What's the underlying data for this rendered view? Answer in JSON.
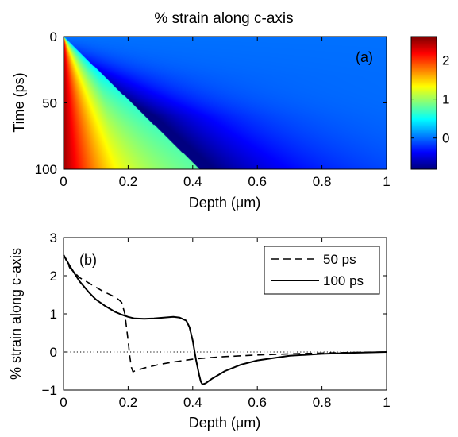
{
  "chart_data": [
    {
      "type": "heatmap",
      "panel_label": "(a)",
      "title": "% strain along c-axis",
      "xlabel_prefix": "Depth (",
      "xlabel_unit": "μm",
      "xlabel_suffix": ")",
      "ylabel": "Time (ps)",
      "xlim": [
        0,
        1
      ],
      "ylim": [
        0,
        100
      ],
      "y_reversed": true,
      "x_ticks": [
        "0",
        "0.2",
        "0.4",
        "0.6",
        "0.8",
        "1"
      ],
      "y_ticks": [
        "0",
        "50",
        "100"
      ],
      "x_tick_values": [
        0,
        0.2,
        0.4,
        0.6,
        0.8,
        1
      ],
      "y_tick_values": [
        0,
        50,
        100
      ],
      "colorbar": {
        "range": [
          -0.8,
          2.6
        ],
        "ticks": [
          "0",
          "1",
          "2"
        ],
        "tick_values": [
          0,
          1,
          2
        ],
        "colormap": "jet"
      },
      "model": {
        "front_speed_um_per_ps": 0.0042,
        "surface_strain": 2.5,
        "rarefaction_peak": -0.85,
        "far_field_strain": 0.0
      }
    },
    {
      "type": "line",
      "panel_label": "(b)",
      "xlabel_prefix": "Depth (",
      "xlabel_unit": "μm",
      "xlabel_suffix": ")",
      "ylabel": "% strain along c-axis",
      "xlim": [
        0,
        1
      ],
      "ylim": [
        -1,
        3
      ],
      "x_ticks": [
        "0",
        "0.2",
        "0.4",
        "0.6",
        "0.8",
        "1"
      ],
      "y_ticks": [
        "−1",
        "0",
        "1",
        "2",
        "3"
      ],
      "x_tick_values": [
        0,
        0.2,
        0.4,
        0.6,
        0.8,
        1
      ],
      "y_tick_values": [
        -1,
        0,
        1,
        2,
        3
      ],
      "zero_line": "dotted",
      "legend_position": "top-right",
      "series": [
        {
          "name": "50 ps",
          "style": "dashed",
          "x": [
            0,
            0.02,
            0.05,
            0.08,
            0.1,
            0.12,
            0.15,
            0.17,
            0.18,
            0.19,
            0.2,
            0.205,
            0.21,
            0.215,
            0.22,
            0.25,
            0.3,
            0.35,
            0.4,
            0.45,
            0.5,
            0.6,
            0.7,
            0.8,
            0.9,
            1
          ],
          "y": [
            2.55,
            2.2,
            1.95,
            1.8,
            1.7,
            1.6,
            1.48,
            1.38,
            1.3,
            1.0,
            0.3,
            -0.1,
            -0.4,
            -0.52,
            -0.5,
            -0.42,
            -0.32,
            -0.25,
            -0.19,
            -0.15,
            -0.12,
            -0.08,
            -0.05,
            -0.03,
            -0.01,
            0.0
          ]
        },
        {
          "name": "100 ps",
          "style": "solid",
          "x": [
            0,
            0.02,
            0.05,
            0.08,
            0.1,
            0.13,
            0.16,
            0.18,
            0.2,
            0.22,
            0.25,
            0.28,
            0.31,
            0.34,
            0.36,
            0.38,
            0.39,
            0.4,
            0.41,
            0.42,
            0.425,
            0.43,
            0.44,
            0.46,
            0.5,
            0.55,
            0.6,
            0.7,
            0.8,
            0.9,
            1
          ],
          "y": [
            2.55,
            2.25,
            1.85,
            1.55,
            1.38,
            1.2,
            1.05,
            0.98,
            0.92,
            0.88,
            0.87,
            0.88,
            0.9,
            0.92,
            0.9,
            0.82,
            0.65,
            0.3,
            -0.2,
            -0.6,
            -0.78,
            -0.85,
            -0.82,
            -0.7,
            -0.5,
            -0.33,
            -0.22,
            -0.1,
            -0.05,
            -0.02,
            0.0
          ]
        }
      ]
    }
  ]
}
